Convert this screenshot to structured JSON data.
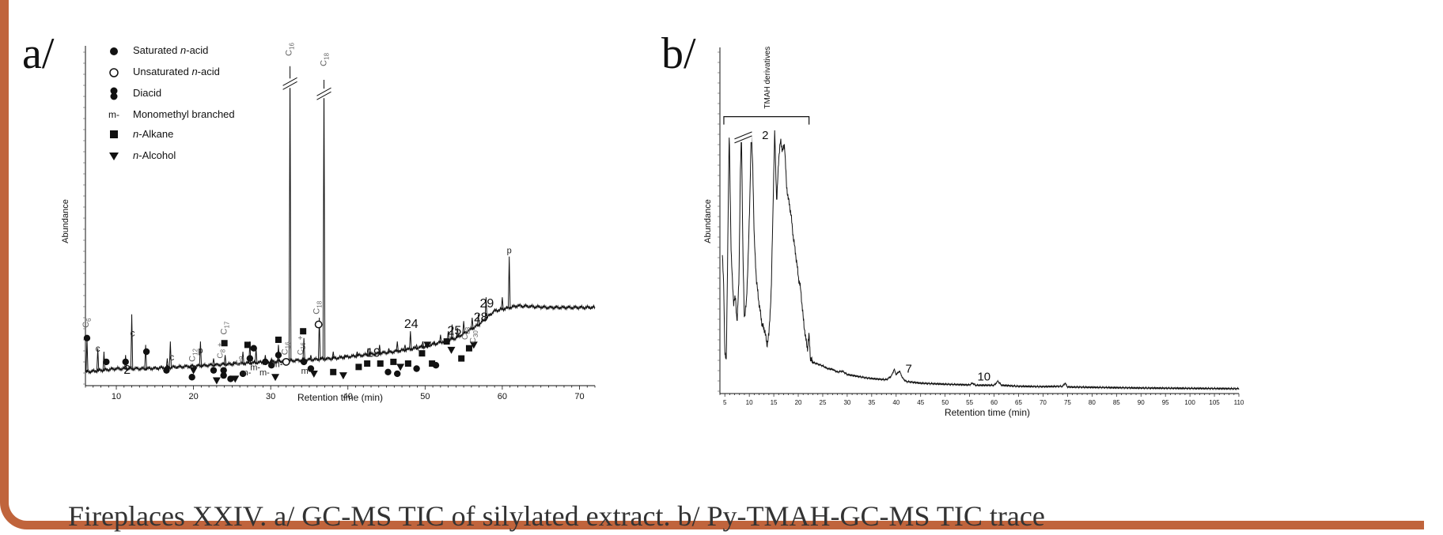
{
  "caption": "Fireplaces XXIV. a/ GC-MS TIC of silylated extract. b/ Py-TMAH-GC-MS TIC trace",
  "colors": {
    "frame": "#c0643c",
    "ink": "#111111",
    "caption": "#333333"
  },
  "chart_data": [
    {
      "type": "line",
      "panel_label": "a/",
      "xlabel": "Retention time (min)",
      "ylabel": "Abundance",
      "xlim": [
        6,
        72
      ],
      "x_ticks": [
        10,
        20,
        30,
        40,
        50,
        60,
        70
      ],
      "ylim": [
        0,
        100
      ],
      "legend": [
        {
          "marker": "filled-circle",
          "prefix": "Saturated ",
          "italic": "n",
          "suffix": "-acid"
        },
        {
          "marker": "open-circle",
          "prefix": "Unsaturated ",
          "italic": "n",
          "suffix": "-acid"
        },
        {
          "marker": "double-circle",
          "prefix": "Diacid",
          "italic": "",
          "suffix": ""
        },
        {
          "marker": "m-",
          "prefix": "Monomethyl branched",
          "italic": "",
          "suffix": ""
        },
        {
          "marker": "square",
          "prefix": "",
          "italic": "n",
          "suffix": "-Alkane"
        },
        {
          "marker": "triangle",
          "prefix": "",
          "italic": "n",
          "suffix": "-Alcohol"
        }
      ],
      "baseline": [
        [
          6,
          4
        ],
        [
          10,
          5
        ],
        [
          14,
          5
        ],
        [
          18,
          5.5
        ],
        [
          22,
          6
        ],
        [
          26,
          6.5
        ],
        [
          30,
          7
        ],
        [
          34,
          7.5
        ],
        [
          38,
          8
        ],
        [
          42,
          9
        ],
        [
          46,
          10
        ],
        [
          50,
          11.5
        ],
        [
          54,
          14
        ],
        [
          57,
          18
        ],
        [
          59,
          22
        ],
        [
          62,
          23.5
        ],
        [
          66,
          23
        ],
        [
          72,
          23
        ]
      ],
      "peaks": [
        {
          "x": 6.2,
          "y": 14
        },
        {
          "x": 7.6,
          "y": 11
        },
        {
          "x": 8.4,
          "y": 10
        },
        {
          "x": 11.2,
          "y": 9
        },
        {
          "x": 12.0,
          "y": 21
        },
        {
          "x": 13.8,
          "y": 12
        },
        {
          "x": 16.6,
          "y": 8
        },
        {
          "x": 17.0,
          "y": 13
        },
        {
          "x": 19.8,
          "y": 6
        },
        {
          "x": 20.9,
          "y": 13
        },
        {
          "x": 22.6,
          "y": 8
        },
        {
          "x": 24.1,
          "y": 9
        },
        {
          "x": 25.2,
          "y": 7
        },
        {
          "x": 26.4,
          "y": 10
        },
        {
          "x": 27.3,
          "y": 13
        },
        {
          "x": 28.1,
          "y": 11
        },
        {
          "x": 29.3,
          "y": 9
        },
        {
          "x": 30.1,
          "y": 8
        },
        {
          "x": 31.0,
          "y": 12
        },
        {
          "x": 32.5,
          "y": 94
        },
        {
          "x": 34.3,
          "y": 14
        },
        {
          "x": 35.2,
          "y": 9
        },
        {
          "x": 36.3,
          "y": 20
        },
        {
          "x": 36.9,
          "y": 90
        },
        {
          "x": 38.1,
          "y": 10
        },
        {
          "x": 39.6,
          "y": 9
        },
        {
          "x": 41.2,
          "y": 10
        },
        {
          "x": 42.6,
          "y": 11
        },
        {
          "x": 44.1,
          "y": 12
        },
        {
          "x": 45.3,
          "y": 11
        },
        {
          "x": 46.4,
          "y": 13
        },
        {
          "x": 47.4,
          "y": 12
        },
        {
          "x": 48.1,
          "y": 16
        },
        {
          "x": 48.9,
          "y": 12
        },
        {
          "x": 49.7,
          "y": 13
        },
        {
          "x": 50.4,
          "y": 12
        },
        {
          "x": 51.2,
          "y": 13
        },
        {
          "x": 52.0,
          "y": 15
        },
        {
          "x": 53.0,
          "y": 16
        },
        {
          "x": 53.5,
          "y": 18
        },
        {
          "x": 54.2,
          "y": 17
        },
        {
          "x": 55.0,
          "y": 19
        },
        {
          "x": 56.1,
          "y": 20
        },
        {
          "x": 56.9,
          "y": 21
        },
        {
          "x": 57.9,
          "y": 26
        },
        {
          "x": 60.0,
          "y": 26
        },
        {
          "x": 60.9,
          "y": 38
        }
      ],
      "markers": [
        {
          "type": "filled-circle",
          "x": 6.2,
          "y": 14
        },
        {
          "type": "filled-circle",
          "x": 8.7,
          "y": 7
        },
        {
          "type": "filled-circle",
          "x": 11.2,
          "y": 7
        },
        {
          "type": "filled-circle",
          "x": 13.9,
          "y": 10
        },
        {
          "type": "filled-circle",
          "x": 16.5,
          "y": 4.5
        },
        {
          "type": "filled-circle",
          "x": 19.8,
          "y": 2.5
        },
        {
          "type": "filled-circle",
          "x": 22.6,
          "y": 4.5
        },
        {
          "type": "filled-circle",
          "x": 23.9,
          "y": 4.5
        },
        {
          "type": "filled-circle",
          "x": 23.9,
          "y": 3
        },
        {
          "type": "filled-circle",
          "x": 24.8,
          "y": 2
        },
        {
          "type": "filled-circle",
          "x": 26.4,
          "y": 3.5
        },
        {
          "type": "filled-circle",
          "x": 27.3,
          "y": 8
        },
        {
          "type": "filled-circle",
          "x": 27.8,
          "y": 11
        },
        {
          "type": "filled-circle",
          "x": 29.3,
          "y": 7
        },
        {
          "type": "filled-circle",
          "x": 30.1,
          "y": 6
        },
        {
          "type": "filled-circle",
          "x": 31.0,
          "y": 9
        },
        {
          "type": "filled-circle",
          "x": 34.3,
          "y": 7
        },
        {
          "type": "filled-circle",
          "x": 35.2,
          "y": 5
        },
        {
          "type": "filled-circle",
          "x": 45.2,
          "y": 4
        },
        {
          "type": "filled-circle",
          "x": 46.4,
          "y": 3.5
        },
        {
          "type": "filled-circle",
          "x": 48.9,
          "y": 5
        },
        {
          "type": "filled-circle",
          "x": 51.4,
          "y": 6
        },
        {
          "type": "open-circle",
          "x": 32.0,
          "y": 7
        },
        {
          "type": "open-circle",
          "x": 36.2,
          "y": 18
        },
        {
          "type": "square",
          "x": 24.0,
          "y": 12.5
        },
        {
          "type": "square",
          "x": 27.0,
          "y": 12
        },
        {
          "type": "square",
          "x": 31.0,
          "y": 13.5
        },
        {
          "type": "square",
          "x": 34.2,
          "y": 16
        },
        {
          "type": "square",
          "x": 38.1,
          "y": 4
        },
        {
          "type": "square",
          "x": 41.4,
          "y": 5.5
        },
        {
          "type": "square",
          "x": 42.5,
          "y": 6.5
        },
        {
          "type": "square",
          "x": 44.2,
          "y": 6.5
        },
        {
          "type": "square",
          "x": 45.9,
          "y": 7
        },
        {
          "type": "square",
          "x": 47.8,
          "y": 6.5
        },
        {
          "type": "square",
          "x": 49.6,
          "y": 9.5
        },
        {
          "type": "square",
          "x": 50.9,
          "y": 6.5
        },
        {
          "type": "square",
          "x": 52.8,
          "y": 13
        },
        {
          "type": "square",
          "x": 54.7,
          "y": 8
        },
        {
          "type": "square",
          "x": 55.7,
          "y": 11
        },
        {
          "type": "triangle",
          "x": 20.0,
          "y": 4.5
        },
        {
          "type": "triangle",
          "x": 23.0,
          "y": 1.5
        },
        {
          "type": "triangle",
          "x": 25.4,
          "y": 2
        },
        {
          "type": "triangle",
          "x": 30.6,
          "y": 2.5
        },
        {
          "type": "triangle",
          "x": 35.6,
          "y": 3.5
        },
        {
          "type": "triangle",
          "x": 39.4,
          "y": 3
        },
        {
          "type": "triangle",
          "x": 46.8,
          "y": 5.5
        },
        {
          "type": "triangle",
          "x": 50.3,
          "y": 12
        },
        {
          "type": "triangle",
          "x": 53.4,
          "y": 10.5
        },
        {
          "type": "triangle",
          "x": 56.3,
          "y": 12
        }
      ],
      "annotations": [
        {
          "text": "C6",
          "x": 6.4,
          "y": 17,
          "vertical": true,
          "color": "#666666",
          "size": 11
        },
        {
          "text": "c",
          "x": 7.6,
          "y": 10,
          "vertical": false,
          "color": "#222222",
          "size": 12
        },
        {
          "text": "c",
          "x": 12.1,
          "y": 14.5,
          "vertical": false,
          "color": "#222222",
          "size": 12
        },
        {
          "text": "c",
          "x": 17.2,
          "y": 7.5,
          "vertical": false,
          "color": "#222222",
          "size": 12
        },
        {
          "text": "2",
          "x": 11.4,
          "y": 3.5,
          "vertical": false,
          "color": "#111111",
          "size": 16
        },
        {
          "text": "C12",
          "x": 20.2,
          "y": 7,
          "vertical": true,
          "color": "#666666",
          "size": 11
        },
        {
          "text": "p",
          "x": 20.9,
          "y": 9.5,
          "vertical": false,
          "color": "#222222",
          "size": 11
        },
        {
          "text": "C17",
          "x": 24.3,
          "y": 15,
          "vertical": true,
          "color": "#666666",
          "size": 11
        },
        {
          "text": "C8 +",
          "x": 23.8,
          "y": 8,
          "vertical": true,
          "color": "#666666",
          "size": 10
        },
        {
          "text": "C9",
          "x": 26.2,
          "y": 6,
          "vertical": true,
          "color": "#666666",
          "size": 10
        },
        {
          "text": "m-",
          "x": 26.8,
          "y": 3,
          "vertical": false,
          "color": "#222222",
          "size": 11
        },
        {
          "text": "m-",
          "x": 28.0,
          "y": 4.5,
          "vertical": false,
          "color": "#222222",
          "size": 11
        },
        {
          "text": "m-",
          "x": 29.2,
          "y": 3,
          "vertical": false,
          "color": "#222222",
          "size": 11
        },
        {
          "text": "m-",
          "x": 30.9,
          "y": 5.5,
          "vertical": false,
          "color": "#222222",
          "size": 11
        },
        {
          "text": "C16",
          "x": 32.2,
          "y": 9,
          "vertical": true,
          "color": "#666666",
          "size": 11
        },
        {
          "text": "C16",
          "x": 32.7,
          "y": 97,
          "vertical": true,
          "color": "#666666",
          "size": 11
        },
        {
          "text": "C18",
          "x": 37.2,
          "y": 94,
          "vertical": true,
          "color": "#666666",
          "size": 11
        },
        {
          "text": "C18",
          "x": 36.3,
          "y": 21,
          "vertical": true,
          "color": "#666666",
          "size": 11
        },
        {
          "text": "C16 +",
          "x": 34.2,
          "y": 9,
          "vertical": true,
          "color": "#666666",
          "size": 10
        },
        {
          "text": "m-",
          "x": 34.6,
          "y": 3.5,
          "vertical": false,
          "color": "#222222",
          "size": 11
        },
        {
          "text": "19",
          "x": 43.3,
          "y": 8.5,
          "vertical": false,
          "color": "#111111",
          "size": 16
        },
        {
          "text": "24",
          "x": 48.2,
          "y": 17,
          "vertical": false,
          "color": "#111111",
          "size": 16
        },
        {
          "text": "25",
          "x": 53.8,
          "y": 15,
          "vertical": false,
          "color": "#111111",
          "size": 16
        },
        {
          "text": "C33",
          "x": 55.5,
          "y": 13.5,
          "vertical": true,
          "color": "#666666",
          "size": 10
        },
        {
          "text": "C30",
          "x": 56.5,
          "y": 12.5,
          "vertical": true,
          "color": "#666666",
          "size": 10
        },
        {
          "text": "28",
          "x": 57.2,
          "y": 19,
          "vertical": false,
          "color": "#111111",
          "size": 16
        },
        {
          "text": "29",
          "x": 58.0,
          "y": 23,
          "vertical": false,
          "color": "#111111",
          "size": 16
        },
        {
          "text": "p",
          "x": 60.9,
          "y": 39,
          "vertical": false,
          "color": "#222222",
          "size": 11
        }
      ],
      "breaks": [
        32.5,
        36.9
      ]
    },
    {
      "type": "line",
      "panel_label": "b/",
      "xlabel": "Retention time (min)",
      "ylabel": "Abundance",
      "xlim": [
        4,
        110
      ],
      "x_ticks": [
        5,
        10,
        15,
        20,
        25,
        30,
        35,
        40,
        45,
        50,
        55,
        60,
        65,
        70,
        75,
        80,
        85,
        90,
        95,
        100,
        105,
        110
      ],
      "ylim": [
        0,
        100
      ],
      "bracket": {
        "text": "TMAH derivatives",
        "x_start": 4.8,
        "x_end": 22.2,
        "y": 80
      },
      "trace": [
        [
          4.5,
          40
        ],
        [
          4.8,
          30
        ],
        [
          5.0,
          12
        ],
        [
          5.3,
          9
        ],
        [
          5.6,
          42
        ],
        [
          5.9,
          76
        ],
        [
          6.3,
          40
        ],
        [
          6.8,
          26
        ],
        [
          7.2,
          28
        ],
        [
          7.5,
          20
        ],
        [
          7.9,
          34
        ],
        [
          8.2,
          65
        ],
        [
          8.4,
          76
        ],
        [
          8.7,
          40
        ],
        [
          9.0,
          22
        ],
        [
          9.4,
          26
        ],
        [
          9.8,
          40
        ],
        [
          10.1,
          56
        ],
        [
          10.4,
          76
        ],
        [
          10.7,
          66
        ],
        [
          11.0,
          45
        ],
        [
          11.5,
          32
        ],
        [
          12.0,
          26
        ],
        [
          12.6,
          20
        ],
        [
          13.2,
          18
        ],
        [
          13.6,
          14
        ],
        [
          14.0,
          17
        ],
        [
          14.5,
          30
        ],
        [
          14.9,
          58
        ],
        [
          15.2,
          76
        ],
        [
          15.6,
          55
        ],
        [
          16.0,
          68
        ],
        [
          16.4,
          73
        ],
        [
          16.8,
          70
        ],
        [
          17.2,
          72
        ],
        [
          17.6,
          60
        ],
        [
          18.0,
          56
        ],
        [
          18.5,
          52
        ],
        [
          19.0,
          45
        ],
        [
          19.5,
          40
        ],
        [
          20.0,
          34
        ],
        [
          20.5,
          30
        ],
        [
          21.0,
          22
        ],
        [
          21.5,
          16
        ],
        [
          21.9,
          13
        ],
        [
          22.2,
          17
        ],
        [
          22.5,
          10
        ],
        [
          23.0,
          9
        ],
        [
          24.0,
          8.5
        ],
        [
          25.0,
          8
        ],
        [
          26.0,
          7.2
        ],
        [
          27.0,
          7
        ],
        [
          28.0,
          6.2
        ],
        [
          29.0,
          6.5
        ],
        [
          30.0,
          5.5
        ],
        [
          32.0,
          5
        ],
        [
          34.0,
          4.5
        ],
        [
          36.0,
          4.2
        ],
        [
          38.0,
          4
        ],
        [
          39.0,
          5
        ],
        [
          39.6,
          7
        ],
        [
          40.0,
          5.5
        ],
        [
          40.7,
          6.5
        ],
        [
          41.3,
          4.5
        ],
        [
          42.0,
          3.5
        ],
        [
          45.0,
          3
        ],
        [
          50.0,
          2.7
        ],
        [
          55.0,
          2.5
        ],
        [
          55.6,
          3
        ],
        [
          56.2,
          2.4
        ],
        [
          60.0,
          2.4
        ],
        [
          60.8,
          3.6
        ],
        [
          61.5,
          2.4
        ],
        [
          65.0,
          2.1
        ],
        [
          70.0,
          2
        ],
        [
          74.0,
          2.1
        ],
        [
          74.5,
          3
        ],
        [
          75.0,
          1.9
        ],
        [
          80.0,
          1.8
        ],
        [
          90.0,
          1.6
        ],
        [
          100.0,
          1.5
        ],
        [
          110.0,
          1.4
        ]
      ],
      "annotations": [
        {
          "text": "2",
          "x": 11.3,
          "y": 74
        },
        {
          "text": "7",
          "x": 40.6,
          "y": 6.5
        },
        {
          "text": "10",
          "x": 55.3,
          "y": 4.2
        }
      ],
      "breaks": [
        8.6
      ]
    }
  ]
}
